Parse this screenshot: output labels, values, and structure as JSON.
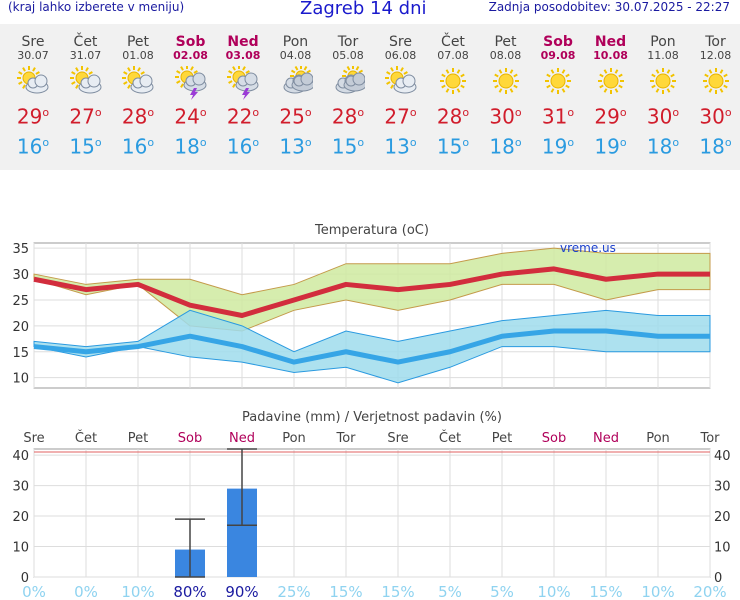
{
  "header": {
    "menu_hint": "(kraj lahko izberete v meniju)",
    "title": "Zagreb 14 dni",
    "updated": "Zadnja posodobitev: 30.07.2025 - 22:27"
  },
  "days": [
    {
      "name": "Sre",
      "date": "30.07",
      "weekend": false,
      "icon": "sun-cloud-icon",
      "tmax": "29",
      "tmin": "16"
    },
    {
      "name": "Čet",
      "date": "31.07",
      "weekend": false,
      "icon": "sun-cloud-icon",
      "tmax": "27",
      "tmin": "15"
    },
    {
      "name": "Pet",
      "date": "01.08",
      "weekend": false,
      "icon": "sun-cloud-icon",
      "tmax": "28",
      "tmin": "16"
    },
    {
      "name": "Sob",
      "date": "02.08",
      "weekend": true,
      "icon": "thunderstorm-icon",
      "tmax": "24",
      "tmin": "18"
    },
    {
      "name": "Ned",
      "date": "03.08",
      "weekend": true,
      "icon": "thunderstorm-icon",
      "tmax": "22",
      "tmin": "16"
    },
    {
      "name": "Pon",
      "date": "04.08",
      "weekend": false,
      "icon": "cloudy-icon",
      "tmax": "25",
      "tmin": "13"
    },
    {
      "name": "Tor",
      "date": "05.08",
      "weekend": false,
      "icon": "cloudy-icon",
      "tmax": "28",
      "tmin": "15"
    },
    {
      "name": "Sre",
      "date": "06.08",
      "weekend": false,
      "icon": "sun-cloud-icon",
      "tmax": "27",
      "tmin": "13"
    },
    {
      "name": "Čet",
      "date": "07.08",
      "weekend": false,
      "icon": "sun-icon",
      "tmax": "28",
      "tmin": "15"
    },
    {
      "name": "Pet",
      "date": "08.08",
      "weekend": false,
      "icon": "sun-icon",
      "tmax": "30",
      "tmin": "18"
    },
    {
      "name": "Sob",
      "date": "09.08",
      "weekend": true,
      "icon": "sun-icon",
      "tmax": "31",
      "tmin": "19"
    },
    {
      "name": "Ned",
      "date": "10.08",
      "weekend": true,
      "icon": "sun-icon",
      "tmax": "29",
      "tmin": "19"
    },
    {
      "name": "Pon",
      "date": "11.08",
      "weekend": false,
      "icon": "sun-icon",
      "tmax": "30",
      "tmin": "18"
    },
    {
      "name": "Tor",
      "date": "12.08",
      "weekend": false,
      "icon": "sun-icon",
      "tmax": "30",
      "tmin": "18"
    }
  ],
  "degree_symbol": "o",
  "chart_data": [
    {
      "type": "line",
      "title": "Temperatura (oC)",
      "watermark": "vreme.us",
      "ylim": [
        8,
        36
      ],
      "yticks": [
        10,
        15,
        20,
        25,
        30,
        35
      ],
      "grid": true,
      "x": [
        "Sre",
        "Čet",
        "Pet",
        "Sob",
        "Ned",
        "Pon",
        "Tor",
        "Sre",
        "Čet",
        "Pet",
        "Sob",
        "Ned",
        "Pon",
        "Tor"
      ],
      "series": [
        {
          "role": "max",
          "color": "#d22d3d",
          "values": [
            29,
            27,
            28,
            24,
            22,
            25,
            28,
            27,
            28,
            30,
            31,
            29,
            30,
            30
          ]
        },
        {
          "role": "max-range-upper",
          "color": "#b5e06a",
          "values": [
            30,
            28,
            29,
            29,
            26,
            28,
            32,
            32,
            32,
            34,
            35,
            34,
            34,
            34
          ]
        },
        {
          "role": "max-range-lower",
          "color": "#b5e06a",
          "values": [
            29,
            26,
            28,
            20,
            19,
            23,
            25,
            23,
            25,
            28,
            28,
            25,
            27,
            27
          ]
        },
        {
          "role": "min",
          "color": "#36a5e6",
          "values": [
            16,
            15,
            16,
            18,
            16,
            13,
            15,
            13,
            15,
            18,
            19,
            19,
            18,
            18
          ]
        },
        {
          "role": "min-range-upper",
          "color": "#8ed6ea",
          "values": [
            17,
            16,
            17,
            23,
            20,
            15,
            19,
            17,
            19,
            21,
            22,
            23,
            22,
            22
          ]
        },
        {
          "role": "min-range-lower",
          "color": "#8ed6ea",
          "values": [
            16,
            14,
            16,
            14,
            13,
            11,
            12,
            9,
            12,
            16,
            16,
            15,
            15,
            15
          ]
        }
      ]
    },
    {
      "type": "bar",
      "title": "Padavine (mm) / Verjetnost padavin (%)",
      "categories": [
        "Sre",
        "Čet",
        "Pet",
        "Sob",
        "Ned",
        "Pon",
        "Tor",
        "Sre",
        "Čet",
        "Pet",
        "Sob",
        "Ned",
        "Pon",
        "Tor"
      ],
      "weekend": [
        false,
        false,
        false,
        true,
        true,
        false,
        false,
        false,
        false,
        false,
        true,
        true,
        false,
        false
      ],
      "ylim": [
        0,
        42
      ],
      "yticks": [
        0,
        10,
        20,
        30,
        40
      ],
      "right_yticks": [
        "0",
        "10",
        "20",
        "30",
        "40"
      ],
      "values": [
        0,
        0,
        0,
        9,
        29,
        0,
        0,
        0,
        0,
        0,
        0,
        0,
        0,
        0
      ],
      "error_bars": [
        null,
        null,
        null,
        [
          0,
          19
        ],
        [
          17,
          42
        ],
        null,
        null,
        null,
        null,
        null,
        null,
        null,
        null,
        null
      ],
      "probability": [
        "0%",
        "0%",
        "10%",
        "80%",
        "90%",
        "25%",
        "15%",
        "15%",
        "5%",
        "5%",
        "10%",
        "15%",
        "10%",
        "20%"
      ],
      "bar_color": "#3a86e0"
    }
  ]
}
